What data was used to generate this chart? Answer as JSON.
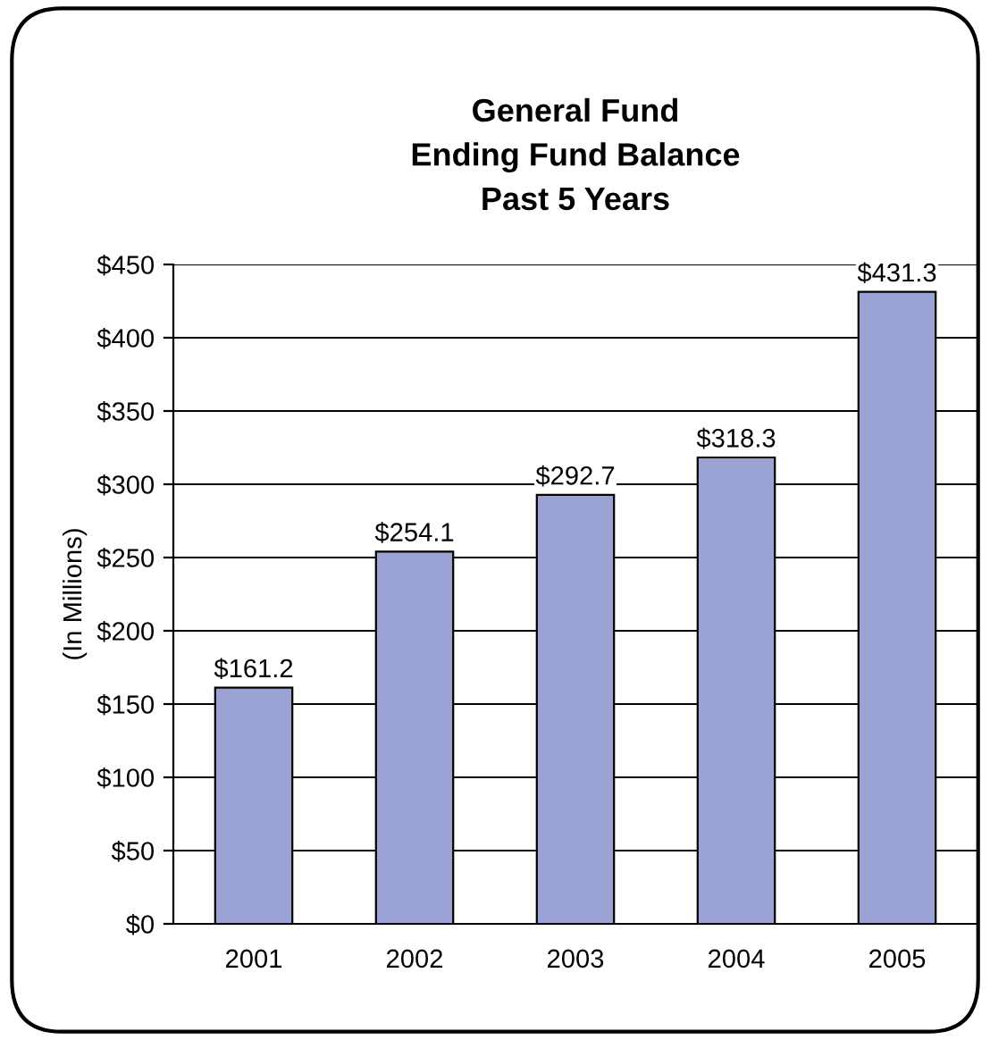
{
  "chart_data": {
    "type": "bar",
    "title": "General Fund\nEnding Fund Balance\nPast 5 Years",
    "ylabel": "(In Millions)",
    "categories": [
      "2001",
      "2002",
      "2003",
      "2004",
      "2005"
    ],
    "values": [
      161.2,
      254.1,
      292.7,
      318.3,
      431.3
    ],
    "value_labels": [
      "$161.2",
      "$254.1",
      "$292.7",
      "$318.3",
      "$431.3"
    ],
    "color": "#9aa3d4",
    "ylim": [
      0,
      450
    ],
    "yticks": [
      {
        "value": 0,
        "label": "$0"
      },
      {
        "value": 50,
        "label": "$50"
      },
      {
        "value": 100,
        "label": "$100"
      },
      {
        "value": 150,
        "label": "$150"
      },
      {
        "value": 200,
        "label": "$200"
      },
      {
        "value": 250,
        "label": "$250"
      },
      {
        "value": 300,
        "label": "$300"
      },
      {
        "value": 350,
        "label": "$350"
      },
      {
        "value": 400,
        "label": "$400"
      },
      {
        "value": 450,
        "label": "$450"
      }
    ],
    "grid": "y",
    "legend": false
  }
}
